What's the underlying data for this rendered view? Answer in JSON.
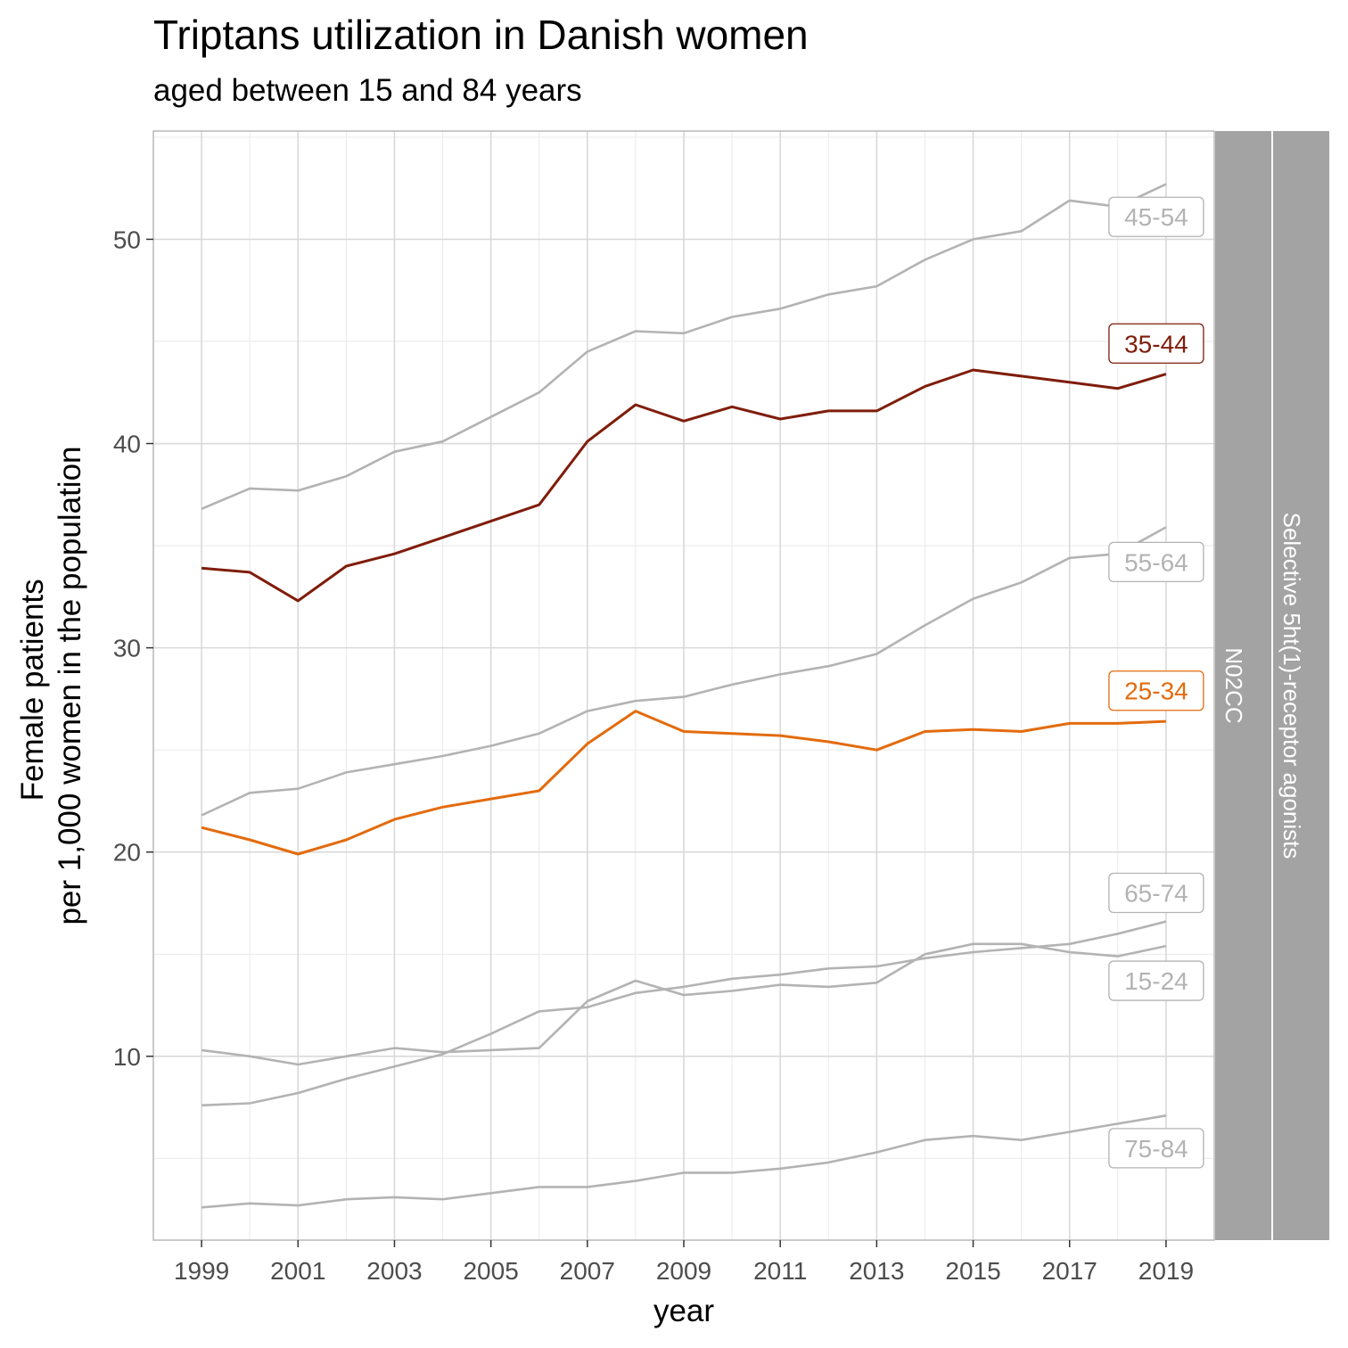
{
  "chart_data": {
    "type": "line",
    "title": "Triptans utilization in Danish women",
    "subtitle": "aged between 15 and 84 years",
    "xlabel": "year",
    "ylabel_line1": "Female patients",
    "ylabel_line2": "per 1,000 women in the population",
    "strip_outer": "Selective 5ht(1)-receptor agonists",
    "strip_inner": "N02CC",
    "xlim": [
      1998,
      2020
    ],
    "ylim": [
      1.0,
      55.3
    ],
    "x_ticks": [
      1999,
      2001,
      2003,
      2005,
      2007,
      2009,
      2011,
      2013,
      2015,
      2017,
      2019
    ],
    "x_tick_labels": [
      "1999",
      "2001",
      "2003",
      "2005",
      "2007",
      "2009",
      "2011",
      "2013",
      "2015",
      "2017",
      "2019"
    ],
    "y_ticks": [
      10,
      20,
      30,
      40,
      50
    ],
    "y_tick_labels": [
      "10",
      "20",
      "30",
      "40",
      "50"
    ],
    "grid": true,
    "x": [
      1999,
      2000,
      2001,
      2002,
      2003,
      2004,
      2005,
      2006,
      2007,
      2008,
      2009,
      2010,
      2011,
      2012,
      2013,
      2014,
      2015,
      2016,
      2017,
      2018,
      2019
    ],
    "series": [
      {
        "name": "45-54",
        "color": "#b3b3b3",
        "highlight": false,
        "values": [
          36.8,
          37.8,
          37.7,
          38.4,
          39.6,
          40.1,
          41.3,
          42.5,
          44.5,
          45.5,
          45.4,
          46.2,
          46.6,
          47.3,
          47.7,
          49.0,
          50.0,
          50.4,
          51.9,
          51.6,
          52.7
        ]
      },
      {
        "name": "35-44",
        "color": "#7f1d0b",
        "highlight": true,
        "values": [
          33.9,
          33.7,
          32.3,
          34.0,
          34.6,
          35.4,
          36.2,
          37.0,
          40.1,
          41.9,
          41.1,
          41.8,
          41.2,
          41.6,
          41.6,
          42.8,
          43.6,
          43.3,
          43.0,
          42.7,
          43.4
        ]
      },
      {
        "name": "55-64",
        "color": "#b3b3b3",
        "highlight": false,
        "values": [
          21.8,
          22.9,
          23.1,
          23.9,
          24.3,
          24.7,
          25.2,
          25.8,
          26.9,
          27.4,
          27.6,
          28.2,
          28.7,
          29.1,
          29.7,
          31.1,
          32.4,
          33.2,
          34.4,
          34.6,
          35.9
        ]
      },
      {
        "name": "25-34",
        "color": "#e36b0e",
        "highlight": true,
        "values": [
          21.2,
          20.6,
          19.9,
          20.6,
          21.6,
          22.2,
          22.6,
          23.0,
          25.3,
          26.9,
          25.9,
          25.8,
          25.7,
          25.4,
          25.0,
          25.9,
          26.0,
          25.9,
          26.3,
          26.3,
          26.4
        ]
      },
      {
        "name": "65-74",
        "color": "#b3b3b3",
        "highlight": false,
        "values": [
          7.6,
          7.7,
          8.2,
          8.9,
          9.5,
          10.1,
          11.1,
          12.2,
          12.4,
          13.1,
          13.4,
          13.8,
          14.0,
          14.3,
          14.4,
          14.8,
          15.1,
          15.3,
          15.5,
          16.0,
          16.6
        ]
      },
      {
        "name": "15-24",
        "color": "#b3b3b3",
        "highlight": false,
        "values": [
          10.3,
          10.0,
          9.6,
          10.0,
          10.4,
          10.2,
          10.3,
          10.4,
          12.7,
          13.7,
          13.0,
          13.2,
          13.5,
          13.4,
          13.6,
          15.0,
          15.5,
          15.5,
          15.1,
          14.9,
          15.4
        ]
      },
      {
        "name": "75-84",
        "color": "#b3b3b3",
        "highlight": false,
        "values": [
          2.6,
          2.8,
          2.7,
          3.0,
          3.1,
          3.0,
          3.3,
          3.6,
          3.6,
          3.9,
          4.3,
          4.3,
          4.5,
          4.8,
          5.3,
          5.9,
          6.1,
          5.9,
          6.3,
          6.7,
          7.1
        ]
      }
    ],
    "labels": [
      {
        "series": "45-54",
        "text": "45-54",
        "value": 51.1
      },
      {
        "series": "35-44",
        "text": "35-44",
        "value": 44.9
      },
      {
        "series": "55-64",
        "text": "55-64",
        "value": 34.2
      },
      {
        "series": "25-34",
        "text": "25-34",
        "value": 27.9
      },
      {
        "series": "65-74",
        "text": "65-74",
        "value": 18.0
      },
      {
        "series": "15-24",
        "text": "15-24",
        "value": 13.7
      },
      {
        "series": "75-84",
        "text": "75-84",
        "value": 5.5
      }
    ]
  }
}
